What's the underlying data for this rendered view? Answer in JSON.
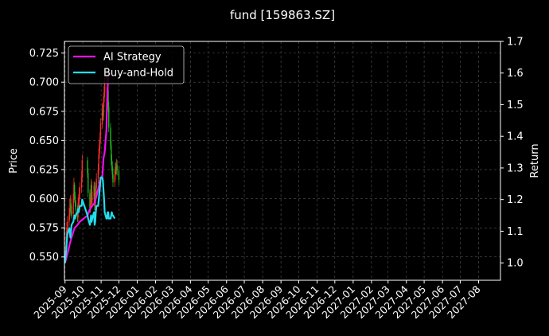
{
  "chart_data": {
    "type": "line",
    "title": "fund [159863.SZ]",
    "ylabel_left": "Price",
    "ylabel_right": "Return",
    "xlabel": "",
    "background": "#000000",
    "grid": true,
    "legend_position": "top-left",
    "x_ticks": [
      "2025-09",
      "2025-10",
      "2025-11",
      "2025-12",
      "2026-01",
      "2026-02",
      "2026-03",
      "2026-04",
      "2026-05",
      "2026-06",
      "2026-07",
      "2026-08",
      "2026-09",
      "2026-10",
      "2026-11",
      "2026-12",
      "2027-01",
      "2027-02",
      "2027-03",
      "2027-04",
      "2027-05",
      "2027-06",
      "2027-07",
      "2027-08"
    ],
    "x_range": [
      "2025-08-31",
      "2027-09-07"
    ],
    "ylim_left": [
      0.53,
      0.735
    ],
    "y_ticks_left": [
      0.55,
      0.575,
      0.6,
      0.625,
      0.65,
      0.675,
      0.7,
      0.725
    ],
    "ylim_right": [
      0.945,
      1.7
    ],
    "y_ticks_right": [
      1.0,
      1.1,
      1.2,
      1.3,
      1.4,
      1.5,
      1.6,
      1.7
    ],
    "candles": {
      "axis": "left",
      "up_color": "#ff2a2a",
      "down_color": "#1fb41f",
      "dates": [
        "2025-09-01",
        "2025-09-02",
        "2025-09-03",
        "2025-09-04",
        "2025-09-05",
        "2025-09-08",
        "2025-09-09",
        "2025-09-10",
        "2025-09-11",
        "2025-09-12",
        "2025-09-15",
        "2025-09-16",
        "2025-09-17",
        "2025-09-18",
        "2025-09-19",
        "2025-09-22",
        "2025-09-23",
        "2025-09-24",
        "2025-09-25",
        "2025-09-26",
        "2025-09-29",
        "2025-09-30",
        "2025-10-09",
        "2025-10-10",
        "2025-10-13",
        "2025-10-14",
        "2025-10-15",
        "2025-10-16",
        "2025-10-17",
        "2025-10-20",
        "2025-10-21",
        "2025-10-22",
        "2025-10-23",
        "2025-10-24",
        "2025-10-27",
        "2025-10-28",
        "2025-10-29",
        "2025-10-30",
        "2025-10-31",
        "2025-11-03",
        "2025-11-04",
        "2025-11-05",
        "2025-11-06",
        "2025-11-07",
        "2025-11-10",
        "2025-11-11",
        "2025-11-12",
        "2025-11-13",
        "2025-11-14",
        "2025-11-17",
        "2025-11-18",
        "2025-11-19",
        "2025-11-20",
        "2025-11-21",
        "2025-11-24",
        "2025-11-25",
        "2025-11-26",
        "2025-11-27",
        "2025-11-28",
        "2025-12-01"
      ],
      "open": [
        0.548,
        0.553,
        0.556,
        0.568,
        0.575,
        0.58,
        0.586,
        0.592,
        0.596,
        0.589,
        0.587,
        0.6,
        0.612,
        0.603,
        0.597,
        0.59,
        0.584,
        0.596,
        0.598,
        0.604,
        0.609,
        0.618,
        0.633,
        0.622,
        0.605,
        0.592,
        0.597,
        0.612,
        0.599,
        0.601,
        0.611,
        0.594,
        0.6,
        0.609,
        0.617,
        0.625,
        0.638,
        0.645,
        0.652,
        0.664,
        0.676,
        0.671,
        0.683,
        0.691,
        0.704,
        0.711,
        0.706,
        0.693,
        0.679,
        0.661,
        0.646,
        0.633,
        0.628,
        0.621,
        0.614,
        0.62,
        0.627,
        0.625,
        0.629,
        0.624
      ],
      "close": [
        0.553,
        0.556,
        0.568,
        0.575,
        0.58,
        0.586,
        0.592,
        0.596,
        0.589,
        0.587,
        0.6,
        0.612,
        0.603,
        0.597,
        0.59,
        0.584,
        0.596,
        0.598,
        0.604,
        0.609,
        0.618,
        0.633,
        0.622,
        0.605,
        0.592,
        0.597,
        0.612,
        0.599,
        0.601,
        0.611,
        0.594,
        0.6,
        0.609,
        0.617,
        0.625,
        0.638,
        0.645,
        0.652,
        0.664,
        0.676,
        0.671,
        0.683,
        0.691,
        0.704,
        0.711,
        0.706,
        0.693,
        0.679,
        0.661,
        0.646,
        0.633,
        0.628,
        0.621,
        0.614,
        0.62,
        0.627,
        0.625,
        0.629,
        0.624,
        0.616
      ],
      "high": [
        0.556,
        0.56,
        0.572,
        0.58,
        0.585,
        0.592,
        0.6,
        0.603,
        0.6,
        0.594,
        0.605,
        0.618,
        0.614,
        0.606,
        0.599,
        0.594,
        0.601,
        0.604,
        0.61,
        0.614,
        0.624,
        0.638,
        0.636,
        0.626,
        0.608,
        0.602,
        0.617,
        0.615,
        0.606,
        0.615,
        0.614,
        0.605,
        0.614,
        0.622,
        0.63,
        0.643,
        0.65,
        0.657,
        0.669,
        0.682,
        0.68,
        0.688,
        0.697,
        0.709,
        0.716,
        0.714,
        0.709,
        0.698,
        0.683,
        0.665,
        0.65,
        0.638,
        0.632,
        0.626,
        0.624,
        0.631,
        0.631,
        0.634,
        0.633,
        0.628
      ],
      "low": [
        0.544,
        0.549,
        0.552,
        0.564,
        0.571,
        0.576,
        0.582,
        0.588,
        0.585,
        0.583,
        0.583,
        0.596,
        0.599,
        0.593,
        0.586,
        0.58,
        0.58,
        0.592,
        0.594,
        0.6,
        0.605,
        0.614,
        0.618,
        0.601,
        0.588,
        0.588,
        0.593,
        0.595,
        0.595,
        0.597,
        0.59,
        0.59,
        0.596,
        0.605,
        0.613,
        0.621,
        0.634,
        0.641,
        0.648,
        0.66,
        0.667,
        0.667,
        0.679,
        0.687,
        0.7,
        0.702,
        0.689,
        0.675,
        0.657,
        0.642,
        0.629,
        0.624,
        0.617,
        0.61,
        0.61,
        0.616,
        0.621,
        0.621,
        0.62,
        0.612
      ]
    },
    "series": [
      {
        "name": "AI Strategy",
        "color": "#ee11ee",
        "axis": "right",
        "points": [
          [
            "2025-09-01",
            1.0
          ],
          [
            "2025-09-04",
            1.02
          ],
          [
            "2025-09-09",
            1.06
          ],
          [
            "2025-09-12",
            1.08
          ],
          [
            "2025-09-17",
            1.11
          ],
          [
            "2025-09-22",
            1.12
          ],
          [
            "2025-09-26",
            1.13
          ],
          [
            "2025-10-09",
            1.15
          ],
          [
            "2025-10-13",
            1.17
          ],
          [
            "2025-10-17",
            1.18
          ],
          [
            "2025-10-21",
            1.19
          ],
          [
            "2025-10-24",
            1.21
          ],
          [
            "2025-10-28",
            1.24
          ],
          [
            "2025-10-30",
            1.26
          ],
          [
            "2025-11-03",
            1.27
          ],
          [
            "2025-11-05",
            1.33
          ],
          [
            "2025-11-07",
            1.35
          ],
          [
            "2025-11-10",
            1.42
          ],
          [
            "2025-11-11",
            1.5
          ],
          [
            "2025-11-12",
            1.55
          ],
          [
            "2025-11-13",
            1.59
          ],
          [
            "2025-11-14",
            1.6
          ],
          [
            "2025-11-17",
            1.6
          ],
          [
            "2025-11-19",
            1.6
          ]
        ]
      },
      {
        "name": "Buy-and-Hold",
        "color": "#22ddee",
        "axis": "right",
        "points": [
          [
            "2025-09-01",
            1.0
          ],
          [
            "2025-09-02",
            1.02
          ],
          [
            "2025-09-03",
            1.04
          ],
          [
            "2025-09-04",
            1.07
          ],
          [
            "2025-09-05",
            1.09
          ],
          [
            "2025-09-08",
            1.11
          ],
          [
            "2025-09-09",
            1.1
          ],
          [
            "2025-09-10",
            1.08
          ],
          [
            "2025-09-11",
            1.1
          ],
          [
            "2025-09-12",
            1.12
          ],
          [
            "2025-09-15",
            1.13
          ],
          [
            "2025-09-16",
            1.14
          ],
          [
            "2025-09-17",
            1.15
          ],
          [
            "2025-09-18",
            1.14
          ],
          [
            "2025-09-19",
            1.15
          ],
          [
            "2025-09-22",
            1.16
          ],
          [
            "2025-09-23",
            1.17
          ],
          [
            "2025-09-24",
            1.16
          ],
          [
            "2025-09-25",
            1.17
          ],
          [
            "2025-09-26",
            1.18
          ],
          [
            "2025-09-29",
            1.18
          ],
          [
            "2025-09-30",
            1.2
          ],
          [
            "2025-10-09",
            1.15
          ],
          [
            "2025-10-10",
            1.14
          ],
          [
            "2025-10-13",
            1.12
          ],
          [
            "2025-10-14",
            1.13
          ],
          [
            "2025-10-15",
            1.15
          ],
          [
            "2025-10-16",
            1.13
          ],
          [
            "2025-10-17",
            1.14
          ],
          [
            "2025-10-20",
            1.16
          ],
          [
            "2025-10-21",
            1.12
          ],
          [
            "2025-10-22",
            1.13
          ],
          [
            "2025-10-23",
            1.16
          ],
          [
            "2025-10-24",
            1.18
          ],
          [
            "2025-10-27",
            1.18
          ],
          [
            "2025-10-28",
            1.2
          ],
          [
            "2025-10-29",
            1.22
          ],
          [
            "2025-10-30",
            1.24
          ],
          [
            "2025-10-31",
            1.27
          ],
          [
            "2025-11-03",
            1.27
          ],
          [
            "2025-11-04",
            1.26
          ],
          [
            "2025-11-05",
            1.23
          ],
          [
            "2025-11-06",
            1.2
          ],
          [
            "2025-11-07",
            1.16
          ],
          [
            "2025-11-10",
            1.14
          ],
          [
            "2025-11-11",
            1.14
          ],
          [
            "2025-11-12",
            1.16
          ],
          [
            "2025-11-13",
            1.16
          ],
          [
            "2025-11-14",
            1.14
          ],
          [
            "2025-11-17",
            1.14
          ],
          [
            "2025-11-18",
            1.15
          ],
          [
            "2025-11-19",
            1.16
          ],
          [
            "2025-11-20",
            1.15
          ],
          [
            "2025-11-21",
            1.15
          ],
          [
            "2025-11-24",
            1.14
          ]
        ]
      }
    ]
  }
}
